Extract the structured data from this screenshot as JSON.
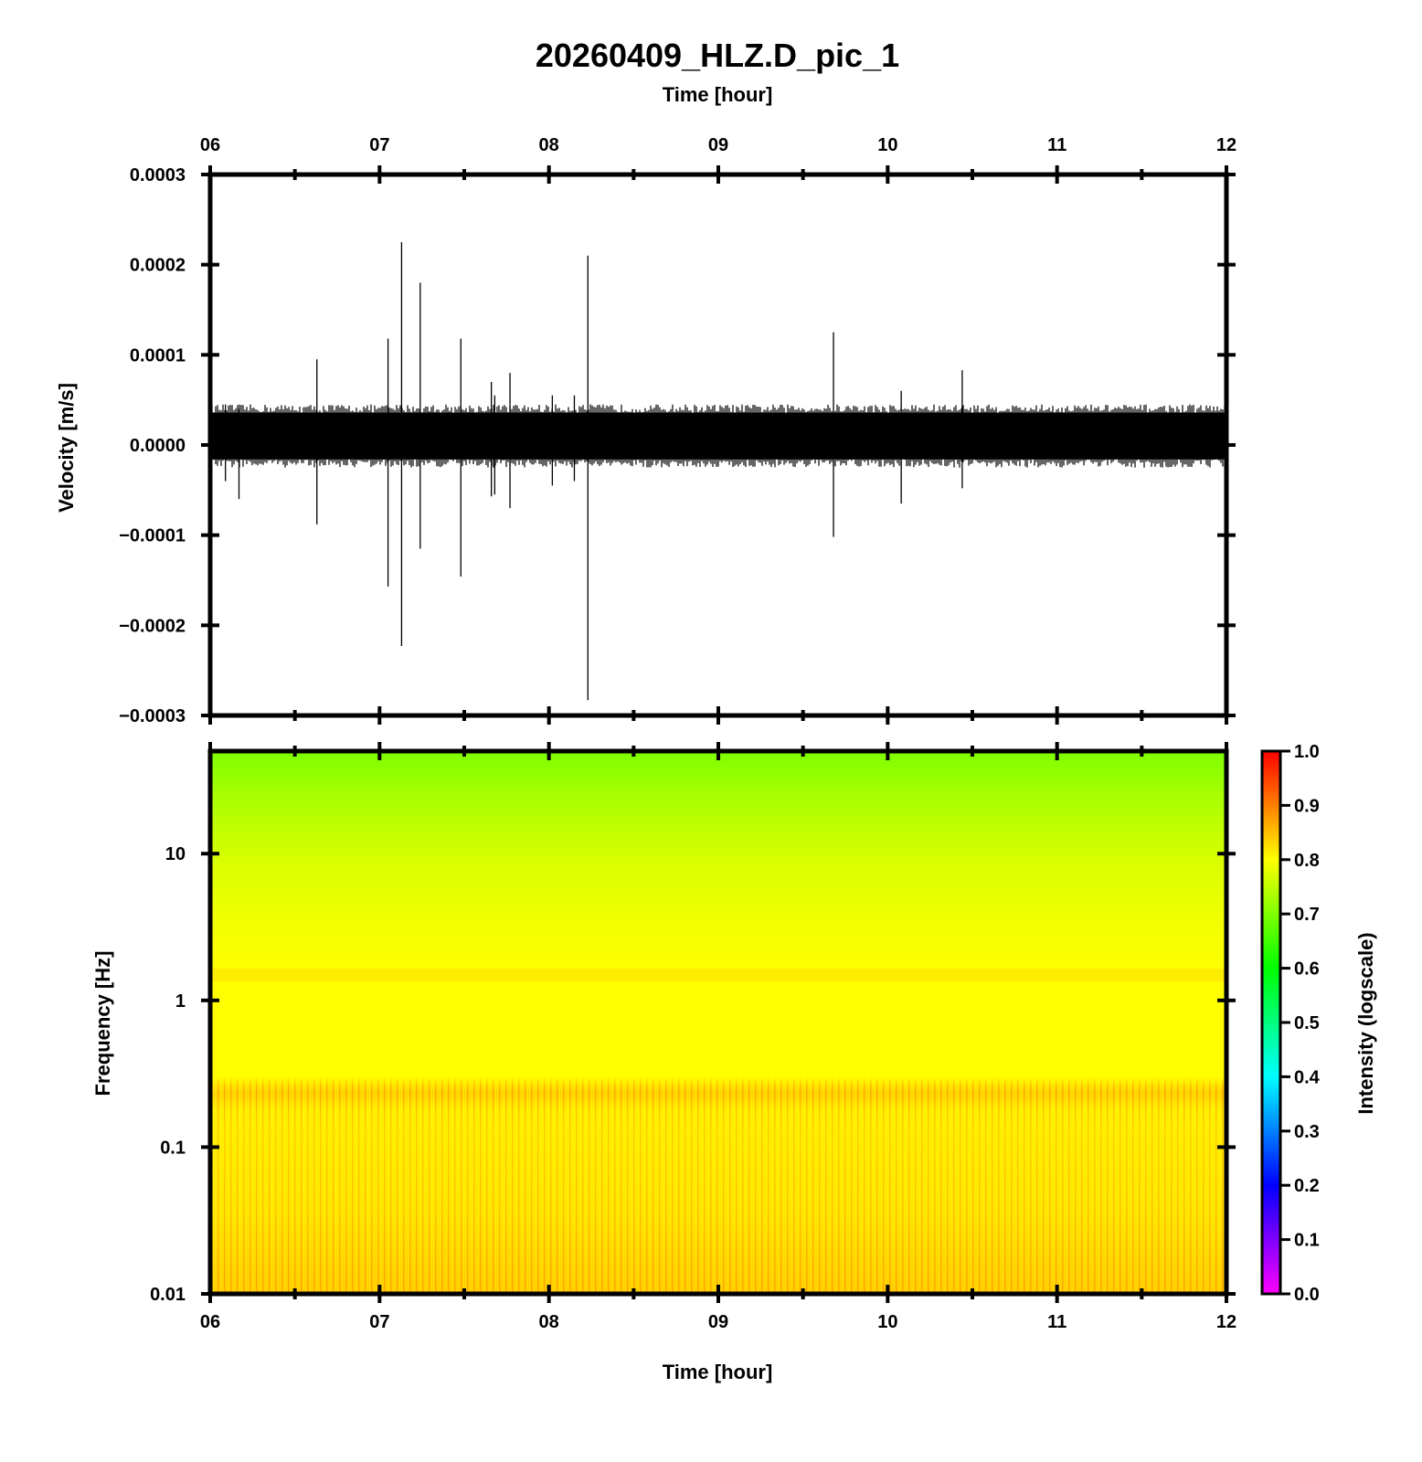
{
  "chart_data": [
    {
      "type": "line",
      "title": "20260409_HLZ.D_pic_1",
      "xlabel_top": "Time [hour]",
      "ylabel": "Velocity [m/s]",
      "xlim": [
        6,
        12
      ],
      "ylim": [
        -0.0003,
        0.0003
      ],
      "x_ticks": [
        "06",
        "07",
        "08",
        "09",
        "10",
        "11",
        "12"
      ],
      "y_ticks": [
        "0.0003",
        "0.0002",
        "0.0001",
        "0.0000",
        "−0.0001",
        "−0.0002",
        "−0.0003"
      ],
      "noise_band": {
        "upper": 4e-05,
        "lower": -2e-05
      },
      "series": [
        {
          "x": [
            6.09,
            6.17,
            6.63,
            7.05,
            7.13,
            7.24,
            7.48,
            7.66,
            7.68,
            7.77,
            8.02,
            8.15,
            8.23,
            9.68,
            10.08,
            10.44
          ],
          "y_max": [
            4.5e-05,
            4e-05,
            9.5e-05,
            0.000118,
            0.000225,
            0.00018,
            0.000118,
            7e-05,
            5.5e-05,
            8e-05,
            5.5e-05,
            5.5e-05,
            0.00021,
            0.000125,
            6e-05,
            8.3e-05
          ],
          "y_min": [
            -4e-05,
            -6e-05,
            -8.8e-05,
            -0.000157,
            -0.000223,
            -0.000115,
            -0.000146,
            -5.7e-05,
            -5.5e-05,
            -7e-05,
            -4.5e-05,
            -4e-05,
            -0.000283,
            -0.000102,
            -6.5e-05,
            -4.8e-05
          ]
        }
      ]
    },
    {
      "type": "heatmap",
      "xlabel": "Time [hour]",
      "ylabel": "Frequency [Hz]",
      "xlim": [
        6,
        12
      ],
      "ylim": [
        0.01,
        50
      ],
      "y_scale": "log",
      "x_ticks": [
        "06",
        "07",
        "08",
        "09",
        "10",
        "11",
        "12"
      ],
      "y_ticks": [
        "10",
        "1",
        "0.1",
        "0.01"
      ],
      "colorbar": {
        "label": "Intensity (logscale)",
        "range": [
          0.0,
          1.0
        ],
        "ticks": [
          "1.0",
          "0.9",
          "0.8",
          "0.7",
          "0.6",
          "0.5",
          "0.4",
          "0.3",
          "0.2",
          "0.1",
          "0.0"
        ],
        "colors": [
          "#ff00ff",
          "#0000ff",
          "#00ffff",
          "#00ff00",
          "#ffff00",
          "#ff0000"
        ]
      },
      "intensity_by_frequency": [
        {
          "freq": 50,
          "value": 0.7
        },
        {
          "freq": 20,
          "value": 0.73
        },
        {
          "freq": 10,
          "value": 0.76
        },
        {
          "freq": 3,
          "value": 0.79
        },
        {
          "freq": 1.3,
          "value": 0.81
        },
        {
          "freq": 0.5,
          "value": 0.8
        },
        {
          "freq": 0.25,
          "value": 0.83
        },
        {
          "freq": 0.1,
          "value": 0.82
        },
        {
          "freq": 0.03,
          "value": 0.84
        },
        {
          "freq": 0.01,
          "value": 0.86
        }
      ]
    }
  ]
}
